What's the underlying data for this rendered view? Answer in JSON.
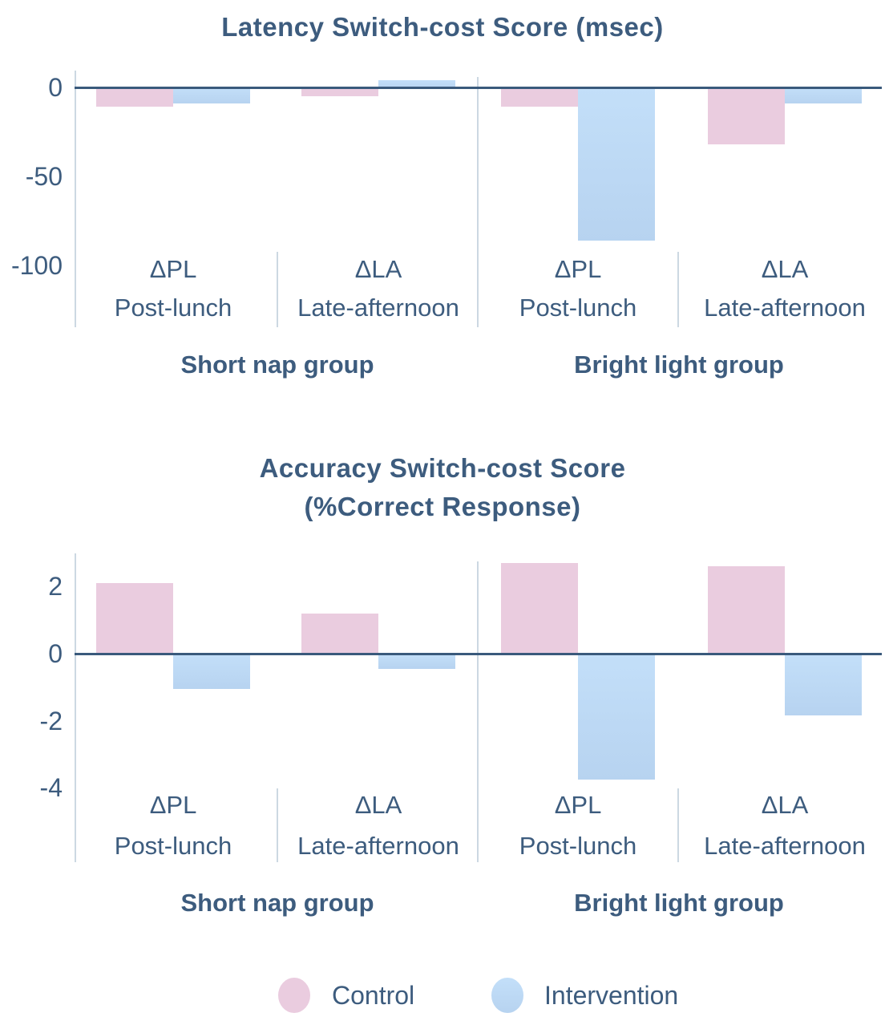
{
  "chart_data": [
    {
      "type": "bar",
      "title": "Latency Switch-cost Score (msec)",
      "title_lines": [
        "Latency Switch-cost Score (msec)"
      ],
      "group_labels": [
        "Short nap group",
        "Bright light group"
      ],
      "categories": [
        "ΔPL Post-lunch",
        "ΔLA Late-afternoon",
        "ΔPL Post-lunch",
        "ΔLA Late-afternoon"
      ],
      "category_symbols": [
        "ΔPL",
        "ΔLA",
        "ΔPL",
        "ΔLA"
      ],
      "category_names": [
        "Post-lunch",
        "Late-afternoon",
        "Post-lunch",
        "Late-afternoon"
      ],
      "series": [
        {
          "name": "Control",
          "values": [
            -10,
            -4,
            -10,
            -31
          ]
        },
        {
          "name": "Intervention",
          "values": [
            -8,
            4,
            -85,
            -8
          ]
        }
      ],
      "yticks": [
        0,
        -50,
        -100
      ],
      "ytick_labels": [
        "0",
        "-50",
        "-100"
      ],
      "ylim": [
        -115,
        10
      ],
      "xlabel": "",
      "ylabel": "",
      "grid": false,
      "legend_position": "shared-bottom"
    },
    {
      "type": "bar",
      "title": "Accuracy Switch-cost Score (%Correct Response)",
      "title_lines": [
        "Accuracy Switch-cost Score",
        "(%Correct Response)"
      ],
      "group_labels": [
        "Short nap group",
        "Bright light group"
      ],
      "categories": [
        "ΔPL Post-lunch",
        "ΔLA Late-afternoon",
        "ΔPL Post-lunch",
        "ΔLA Late-afternoon"
      ],
      "category_symbols": [
        "ΔPL",
        "ΔLA",
        "ΔPL",
        "ΔLA"
      ],
      "category_names": [
        "Post-lunch",
        "Late-afternoon",
        "Post-lunch",
        "Late-afternoon"
      ],
      "series": [
        {
          "name": "Control",
          "values": [
            2.1,
            1.2,
            2.7,
            2.6
          ]
        },
        {
          "name": "Intervention",
          "values": [
            -1.0,
            -0.4,
            -3.7,
            -1.8
          ]
        }
      ],
      "yticks": [
        2,
        0,
        -2,
        -4
      ],
      "ytick_labels": [
        "2",
        "0",
        "-2",
        "-4"
      ],
      "ylim": [
        -5,
        3
      ],
      "xlabel": "",
      "ylabel": "",
      "grid": false,
      "legend_position": "shared-bottom"
    }
  ],
  "legend": {
    "items": [
      {
        "label": "Control",
        "color": "#eaccdf"
      },
      {
        "label": "Intervention",
        "color": "#b9dcf8"
      }
    ]
  },
  "colors": {
    "control_fill": "#eaccdf",
    "intervention_fill_top": "#c3dff9",
    "intervention_fill_bottom": "#b7d3f0",
    "axis_line": "#3a5a7c",
    "separator_line": "#ccd8e2",
    "text": "#3d5c7e"
  }
}
